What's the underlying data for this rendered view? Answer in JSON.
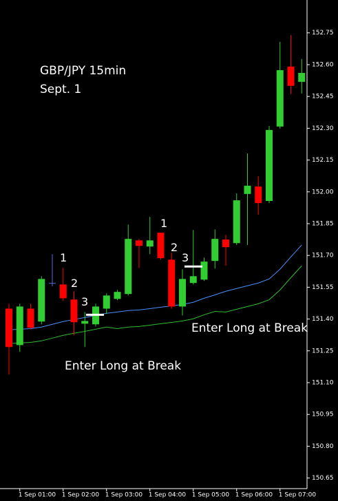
{
  "chart_data": {
    "type": "candlestick",
    "title": "GBP/JPY 15min",
    "subtitle": "Sept. 1",
    "annotations": [
      "1",
      "2",
      "3",
      "1",
      "2",
      "3",
      "Enter Long at Break",
      "Enter Long at Break"
    ],
    "categories": [
      null,
      "1 Sep 01:00",
      null,
      null,
      null,
      "1 Sep 02:00",
      null,
      null,
      null,
      "1 Sep 03:00",
      null,
      null,
      null,
      "1 Sep 04:00",
      null,
      null,
      null,
      "1 Sep 05:00",
      null,
      null,
      null,
      "1 Sep 06:00",
      null,
      null,
      null,
      "1 Sep 07:00",
      null,
      null
    ],
    "open": [
      151.449,
      151.277,
      151.449,
      151.388,
      151.57,
      151.563,
      151.492,
      151.378,
      151.375,
      151.449,
      151.495,
      151.518,
      151.771,
      151.742,
      151.807,
      151.68,
      151.459,
      151.57,
      151.586,
      151.674,
      151.775,
      151.758,
      151.99,
      152.025,
      151.957,
      152.308,
      152.591,
      152.519
    ],
    "high": [
      151.472,
      151.472,
      151.472,
      151.602,
      151.706,
      151.641,
      151.531,
      151.433,
      151.472,
      151.521,
      151.537,
      151.846,
      151.778,
      151.882,
      151.807,
      151.713,
      151.635,
      151.82,
      151.69,
      151.823,
      151.797,
      151.993,
      152.181,
      152.074,
      152.311,
      152.708,
      152.74,
      152.627
    ],
    "low": [
      151.138,
      151.245,
      151.352,
      151.375,
      151.554,
      151.485,
      151.323,
      151.268,
      151.365,
      151.424,
      151.489,
      151.511,
      151.641,
      151.706,
      151.68,
      151.449,
      151.417,
      151.563,
      151.58,
      151.638,
      151.651,
      151.749,
      151.749,
      151.892,
      151.947,
      152.298,
      152.461,
      152.464
    ],
    "close": [
      151.268,
      151.459,
      151.359,
      151.589,
      151.57,
      151.498,
      151.385,
      151.391,
      151.459,
      151.511,
      151.528,
      151.778,
      151.745,
      151.771,
      151.687,
      151.459,
      151.589,
      151.602,
      151.671,
      151.778,
      151.739,
      151.96,
      152.029,
      151.947,
      152.292,
      152.574,
      152.5,
      152.561
    ],
    "up_color": "#32cd32",
    "down_color": "#ff0000",
    "doji_color": "#4f6fe0",
    "overlays": [
      {
        "color": "#4a90ff",
        "values": [
          151.349,
          151.352,
          151.355,
          151.362,
          151.375,
          151.388,
          151.398,
          151.407,
          151.417,
          151.427,
          151.433,
          151.44,
          151.443,
          151.449,
          151.456,
          151.462,
          151.469,
          151.479,
          151.498,
          151.514,
          151.531,
          151.544,
          151.557,
          151.57,
          151.589,
          151.635,
          151.693,
          151.749
        ]
      },
      {
        "color": "#2fbf2f",
        "values": [
          151.284,
          151.287,
          151.29,
          151.297,
          151.31,
          151.323,
          151.333,
          151.342,
          151.352,
          151.362,
          151.355,
          151.362,
          151.365,
          151.371,
          151.378,
          151.384,
          151.391,
          151.401,
          151.42,
          151.436,
          151.433,
          151.446,
          151.459,
          151.472,
          151.491,
          151.537,
          151.595,
          151.651
        ]
      }
    ],
    "break_levels": [
      151.42,
      151.648
    ],
    "ylim": [
      150.6,
      152.905
    ],
    "yticks": [
      152.75,
      {
        "value": 152.6,
        "label": "152.60"
      },
      152.45,
      {
        "value": 152.3,
        "label": "152.30"
      },
      152.15,
      {
        "value": 152.0,
        "label": "152.00"
      },
      151.85,
      {
        "value": 151.7,
        "label": "151.70"
      },
      151.55,
      {
        "value": 151.4,
        "label": "151.40"
      },
      151.25,
      {
        "value": 151.1,
        "label": "151.10"
      },
      150.95,
      {
        "value": 150.8,
        "label": "150.80"
      },
      150.65
    ]
  }
}
